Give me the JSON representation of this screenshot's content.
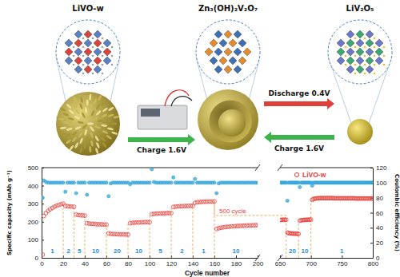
{
  "diagram": {
    "materials": [
      "LiVO-w",
      "Zn₃(OH)₂V₂O₇",
      "LiV₂O₅"
    ],
    "steps": [
      "Charge 1.6V",
      "Discharge 0.4V",
      "Charge 1.6V"
    ]
  },
  "chart_data": {
    "type": "scatter",
    "x_label": "Cycle number",
    "y_label": "Specific capacity (mAh g⁻¹)",
    "y2_label": "Coulombic efficiency (%)",
    "ylim": [
      0,
      500
    ],
    "yticks": [
      0,
      100,
      200,
      300,
      400,
      500
    ],
    "y2lim": [
      0,
      120
    ],
    "y2ticks": [
      0,
      20,
      40,
      60,
      80,
      100,
      120
    ],
    "legend": "upper right",
    "panels": [
      {
        "xlim": [
          0,
          200
        ],
        "xticks": [
          0,
          20,
          40,
          60,
          80,
          100,
          120,
          140,
          160,
          180,
          200
        ]
      },
      {
        "xlim": [
          650,
          800
        ],
        "xticks": [
          650,
          700,
          750,
          800
        ]
      }
    ],
    "x": [
      1,
      2,
      4,
      6,
      8,
      10,
      12,
      14,
      16,
      18,
      20,
      22,
      24,
      26,
      28,
      30,
      32,
      34,
      36,
      38,
      40,
      42,
      44,
      46,
      48,
      50,
      52,
      54,
      56,
      58,
      60,
      62,
      64,
      66,
      68,
      70,
      72,
      74,
      76,
      78,
      80,
      82,
      84,
      86,
      88,
      90,
      92,
      94,
      96,
      98,
      100,
      102,
      104,
      106,
      108,
      110,
      112,
      114,
      116,
      118,
      120,
      122,
      124,
      126,
      128,
      130,
      132,
      134,
      136,
      138,
      140,
      142,
      144,
      146,
      148,
      150,
      152,
      154,
      156,
      158,
      160,
      162,
      164,
      166,
      168,
      170,
      172,
      174,
      176,
      178,
      180,
      182,
      184,
      186,
      188,
      190,
      192,
      194,
      196,
      198,
      200,
      650,
      652,
      654,
      656,
      658,
      660,
      662,
      664,
      666,
      668,
      670,
      672,
      674,
      676,
      678,
      680,
      682,
      684,
      686,
      688,
      690,
      692,
      694,
      696,
      698,
      700,
      702,
      704,
      706,
      708,
      710,
      712,
      714,
      716,
      718,
      720,
      722,
      724,
      726,
      728,
      730,
      732,
      734,
      736,
      738,
      740,
      742,
      744,
      746,
      748,
      750,
      752,
      754,
      756,
      758,
      760,
      762,
      764,
      766,
      768,
      770,
      772,
      774,
      776,
      778,
      780,
      782,
      784,
      786,
      788,
      790,
      792,
      794,
      796,
      798,
      800
    ],
    "series": [
      {
        "name": "LiVO-w",
        "color": "#e2403a",
        "marker": "circle-open",
        "values": [
          18,
          232,
          248,
          260,
          269,
          277,
          284,
          289,
          293,
          297,
          300,
          288,
          286,
          285,
          284,
          283,
          240,
          237,
          236,
          235,
          234,
          192,
          190,
          189,
          188,
          187,
          186,
          186,
          185,
          185,
          184,
          135,
          133,
          132,
          131,
          131,
          130,
          130,
          130,
          129,
          129,
          192,
          194,
          195,
          196,
          196,
          197,
          197,
          198,
          198,
          198,
          242,
          244,
          245,
          246,
          246,
          247,
          247,
          248,
          248,
          248,
          282,
          284,
          285,
          286,
          286,
          287,
          287,
          288,
          288,
          288,
          305,
          308,
          309,
          310,
          311,
          311,
          312,
          312,
          312,
          313,
          160,
          164,
          167,
          169,
          171,
          172,
          173,
          174,
          175,
          176,
          177,
          177,
          178,
          178,
          179,
          179,
          180,
          180,
          181,
          181,
          210,
          210,
          211,
          211,
          211,
          211,
          140,
          137,
          136,
          135,
          135,
          134,
          134,
          134,
          133,
          133,
          206,
          208,
          209,
          210,
          210,
          211,
          211,
          211,
          212,
          212,
          322,
          326,
          328,
          329,
          330,
          330,
          331,
          331,
          331,
          331,
          331,
          331,
          331,
          331,
          331,
          331,
          331,
          331,
          330,
          330,
          330,
          330,
          330,
          330,
          330,
          330,
          330,
          330,
          330,
          330,
          330,
          330,
          330,
          330,
          330,
          329,
          329,
          329,
          329,
          329,
          329,
          329,
          329,
          329,
          329,
          329,
          329,
          329,
          329,
          329
        ]
      },
      {
        "color": "#35a6dc",
        "marker": "circle",
        "axis": "y2",
        "values": [
          80,
          103,
          101,
          100,
          100,
          100,
          100,
          100,
          100,
          100,
          100,
          88,
          100,
          100,
          100,
          100,
          86,
          100,
          100,
          100,
          100,
          84,
          100,
          100,
          100,
          100,
          100,
          100,
          100,
          100,
          100,
          82,
          99,
          100,
          100,
          100,
          100,
          100,
          100,
          100,
          100,
          98,
          100,
          100,
          100,
          100,
          100,
          100,
          100,
          100,
          100,
          118,
          101,
          100,
          100,
          100,
          100,
          100,
          100,
          100,
          100,
          107,
          100,
          100,
          100,
          100,
          100,
          100,
          100,
          100,
          100,
          105,
          100,
          100,
          100,
          100,
          100,
          100,
          100,
          100,
          100,
          86,
          99,
          100,
          100,
          100,
          100,
          100,
          100,
          100,
          100,
          100,
          100,
          100,
          100,
          100,
          100,
          100,
          100,
          100,
          100,
          100,
          100,
          100,
          100,
          100,
          100,
          76,
          100,
          100,
          100,
          100,
          100,
          100,
          100,
          100,
          100,
          94,
          100,
          100,
          100,
          100,
          100,
          100,
          100,
          100,
          100,
          96,
          100,
          100,
          100,
          100,
          100,
          100,
          100,
          100,
          100,
          100,
          100,
          100,
          100,
          100,
          100,
          100,
          100,
          100,
          100,
          100,
          100,
          100,
          100,
          100,
          100,
          100,
          100,
          100,
          100,
          100,
          100,
          100,
          100,
          100,
          100,
          100,
          100,
          100,
          100,
          100,
          100,
          100,
          100,
          100,
          100,
          100,
          100,
          100,
          100
        ]
      }
    ],
    "annotations": [
      {
        "text": "1",
        "from": 0,
        "to": 20
      },
      {
        "text": "2",
        "from": 20,
        "to": 30
      },
      {
        "text": "5",
        "from": 30,
        "to": 40
      },
      {
        "text": "10",
        "from": 40,
        "to": 60
      },
      {
        "text": "20",
        "from": 60,
        "to": 80
      },
      {
        "text": "10",
        "from": 80,
        "to": 100
      },
      {
        "text": "5",
        "from": 100,
        "to": 120
      },
      {
        "text": "2",
        "from": 120,
        "to": 140
      },
      {
        "text": "1",
        "from": 140,
        "to": 160
      },
      {
        "text": "10",
        "from": 160,
        "to": 200
      },
      {
        "text": "20",
        "from": 660,
        "to": 680
      },
      {
        "text": "10",
        "from": 680,
        "to": 700
      },
      {
        "text": "1",
        "from": 700,
        "to": 800
      }
    ],
    "span_annotation": {
      "text": "500 cycle",
      "from": 160,
      "to": 660,
      "level": 235
    }
  }
}
